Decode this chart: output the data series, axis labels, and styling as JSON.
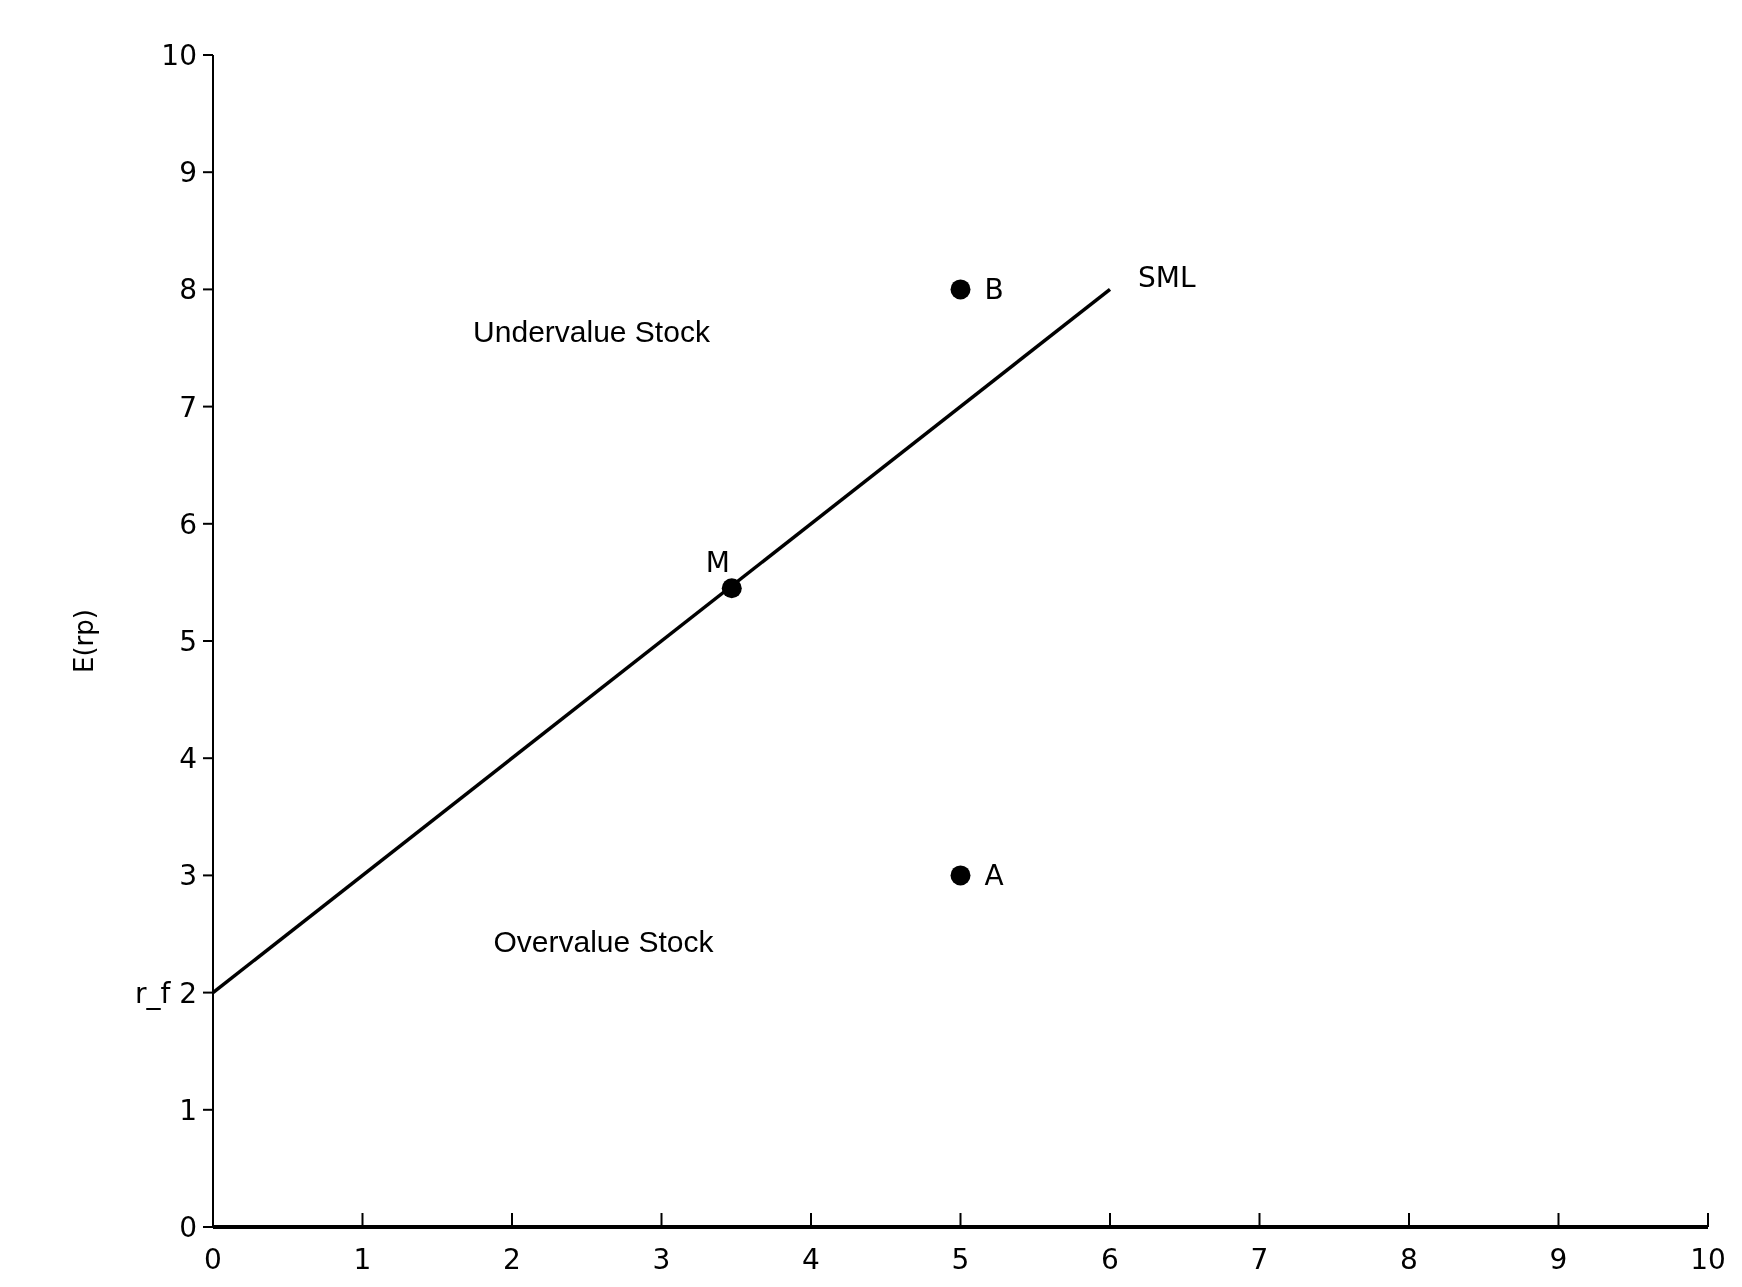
{
  "chart_data": {
    "type": "scatter",
    "ylabel": "E(rp)",
    "xlim": [
      0,
      10
    ],
    "ylim": [
      0,
      10
    ],
    "xticks": [
      0,
      1,
      2,
      3,
      4,
      5,
      6,
      7,
      8,
      9,
      10
    ],
    "yticks": [
      0,
      1,
      {
        "value": 2,
        "label": "r_f 2"
      },
      3,
      4,
      5,
      6,
      7,
      8,
      9,
      10
    ],
    "grid": false,
    "marker": "circle",
    "series": [
      {
        "name": "SML",
        "type": "line",
        "color": "#000000",
        "x": [
          0,
          6
        ],
        "values": [
          2,
          8
        ],
        "marker": "none",
        "line_style": "solid"
      },
      {
        "color": "#000000",
        "x": [
          3.47,
          5,
          5
        ],
        "values": [
          5.45,
          8,
          3
        ],
        "value_labels": [
          "M",
          "B",
          "A"
        ]
      }
    ],
    "annotations": [
      "Undervalue Stock",
      "Overvalue Stock"
    ]
  }
}
